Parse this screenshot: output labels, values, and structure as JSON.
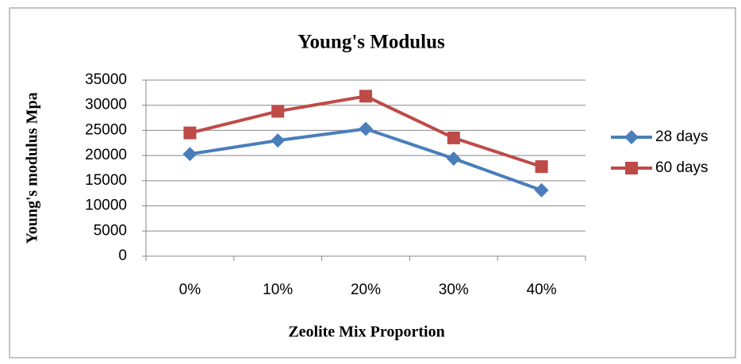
{
  "chart_data": {
    "type": "line",
    "title": "Young's Modulus",
    "x_label": "Zeolite Mix Proportion",
    "y_label": "Young's modulus Mpa",
    "categories": [
      "0%",
      "10%",
      "20%",
      "30%",
      "40%"
    ],
    "series": [
      {
        "name": "28 days",
        "color": "#4a7ebb",
        "marker": "diamond",
        "values": [
          20300,
          23000,
          25300,
          19400,
          13100
        ]
      },
      {
        "name": "60 days",
        "color": "#be4b48",
        "marker": "square",
        "values": [
          24500,
          28800,
          31800,
          23500,
          17800
        ]
      }
    ],
    "ylim": [
      0,
      35000
    ],
    "yticks": [
      0,
      5000,
      10000,
      15000,
      20000,
      25000,
      30000,
      35000
    ],
    "grid": true,
    "legend": "right"
  }
}
